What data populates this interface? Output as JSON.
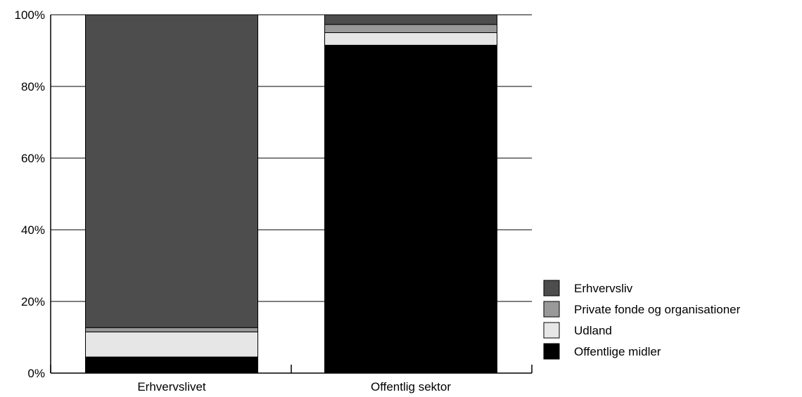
{
  "chart_data": {
    "type": "bar",
    "stacked": true,
    "normalized_percent": true,
    "title": "",
    "xlabel": "",
    "ylabel": "",
    "categories": [
      "Erhvervslivet",
      "Offentlig sektor"
    ],
    "ylim": [
      0,
      100
    ],
    "yticks": [
      0,
      20,
      40,
      60,
      80,
      100
    ],
    "ytick_labels": [
      "0%",
      "20%",
      "40%",
      "60%",
      "80%",
      "100%"
    ],
    "grid": true,
    "legend_position": "right",
    "series": [
      {
        "name": "Offentlige midler",
        "color": "#000000",
        "values": [
          4.5,
          91.5
        ]
      },
      {
        "name": "Udland",
        "color": "#e6e6e6",
        "values": [
          7.0,
          3.5
        ]
      },
      {
        "name": "Private fonde og organisationer",
        "color": "#999999",
        "values": [
          1.2,
          2.3
        ]
      },
      {
        "name": "Erhvervsliv",
        "color": "#4d4d4d",
        "values": [
          87.3,
          2.7
        ]
      }
    ],
    "legend_order": [
      "Erhvervsliv",
      "Private fonde og organisationer",
      "Udland",
      "Offentlige midler"
    ]
  }
}
